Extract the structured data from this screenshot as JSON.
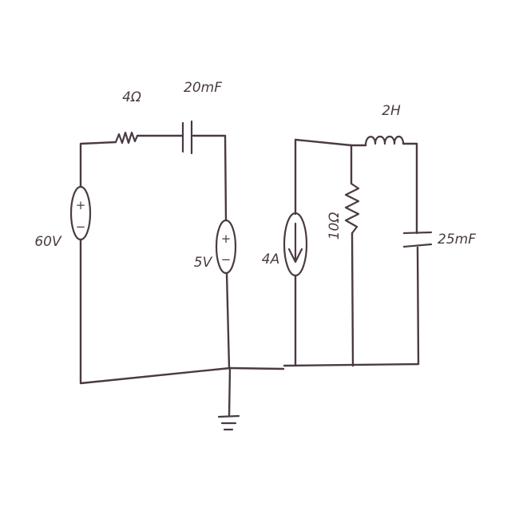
{
  "components": {
    "resistor_1": {
      "value": "4Ω"
    },
    "capacitor_1": {
      "value": "20mF"
    },
    "voltage_source_1": {
      "value": "60V",
      "polarity_top": "+",
      "polarity_bottom": "−"
    },
    "voltage_source_2": {
      "value": "5V",
      "polarity_top": "+",
      "polarity_bottom": "−"
    },
    "current_source_1": {
      "value": "4A"
    },
    "resistor_2": {
      "value": "10Ω"
    },
    "inductor_1": {
      "value": "2H"
    },
    "capacitor_2": {
      "value": "25mF"
    }
  },
  "colors": {
    "ink": "#4a3a45",
    "paper": "#ffffff"
  }
}
